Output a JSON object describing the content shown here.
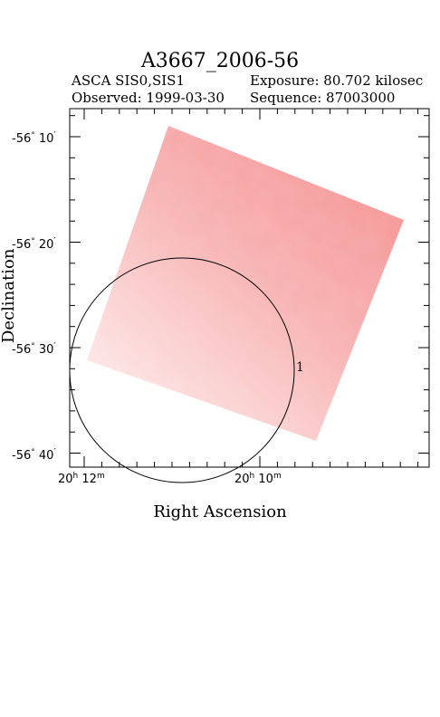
{
  "header": {
    "title": "A3667_2006-56",
    "instrument": "ASCA SIS0,SIS1",
    "exposure": "Exposure: 80.702 kilosec",
    "observed": "Observed: 1999-03-30",
    "sequence": "Sequence: 87003000"
  },
  "axes": {
    "xlabel": "Right Ascension",
    "ylabel": "Declination",
    "y_ticks": [
      {
        "deg": "-56",
        "min": "10"
      },
      {
        "deg": "-56",
        "min": "20"
      },
      {
        "deg": "-56",
        "min": "30"
      },
      {
        "deg": "-56",
        "min": "40"
      }
    ],
    "x_ticks": [
      {
        "h": "20",
        "m": "12"
      },
      {
        "h": "20",
        "m": "10"
      }
    ]
  },
  "image": {
    "color": "#f59a9a",
    "background": "#ffffff"
  },
  "sources": [
    {
      "label": "1"
    }
  ]
}
